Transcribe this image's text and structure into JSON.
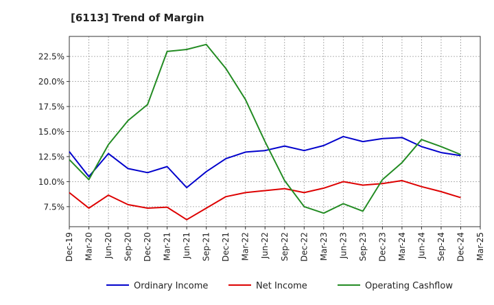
{
  "chart_data": {
    "type": "line",
    "title": "[6113]  Trend of Margin",
    "xlabel": "",
    "ylabel": "",
    "x": [
      "Dec-19",
      "Mar-20",
      "Jun-20",
      "Sep-20",
      "Dec-20",
      "Mar-21",
      "Jun-21",
      "Sep-21",
      "Dec-21",
      "Mar-22",
      "Jun-22",
      "Sep-22",
      "Dec-22",
      "Mar-23",
      "Jun-23",
      "Sep-23",
      "Dec-23",
      "Mar-24",
      "Jun-24",
      "Sep-24",
      "Dec-24",
      "Mar-25"
    ],
    "ylim": [
      5.5,
      24.5
    ],
    "yticks": [
      7.5,
      10.0,
      12.5,
      15.0,
      17.5,
      20.0,
      22.5
    ],
    "ytick_labels": [
      "7.5%",
      "10.0%",
      "12.5%",
      "15.0%",
      "17.5%",
      "20.0%",
      "22.5%"
    ],
    "grid": true,
    "legend_position": "bottom",
    "series": [
      {
        "name": "Ordinary Income",
        "color": "#0000cc",
        "values": [
          13.0,
          10.5,
          12.8,
          11.3,
          10.9,
          11.5,
          9.4,
          11.0,
          12.3,
          12.95,
          13.1,
          13.55,
          13.1,
          13.6,
          14.5,
          14.0,
          14.3,
          14.4,
          13.5,
          12.9,
          12.6,
          null
        ]
      },
      {
        "name": "Net Income",
        "color": "#dd0000",
        "values": [
          8.9,
          7.35,
          8.65,
          7.7,
          7.35,
          7.45,
          6.2,
          7.35,
          8.5,
          8.9,
          9.1,
          9.3,
          8.9,
          9.35,
          10.0,
          9.65,
          9.8,
          10.1,
          9.5,
          9.0,
          8.4,
          null
        ]
      },
      {
        "name": "Operating Cashflow",
        "color": "#228b22",
        "values": [
          12.2,
          10.2,
          13.7,
          16.1,
          17.7,
          23.0,
          23.2,
          23.7,
          21.3,
          18.2,
          14.0,
          10.1,
          7.5,
          6.85,
          7.8,
          7.05,
          10.2,
          11.9,
          14.2,
          13.5,
          12.7,
          null
        ]
      }
    ]
  }
}
